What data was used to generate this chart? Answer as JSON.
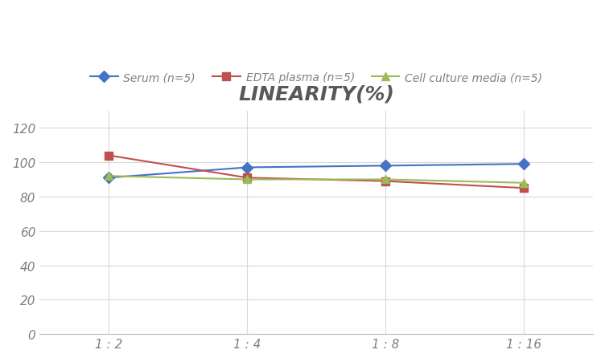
{
  "title": "LINEARITY(%)",
  "x_labels": [
    "1 : 2",
    "1 : 4",
    "1 : 8",
    "1 : 16"
  ],
  "x_positions": [
    0,
    1,
    2,
    3
  ],
  "series": [
    {
      "label": "Serum (n=5)",
      "values": [
        91,
        97,
        98,
        99
      ],
      "color": "#4472C4",
      "marker": "D",
      "markersize": 7,
      "linewidth": 1.5
    },
    {
      "label": "EDTA plasma (n=5)",
      "values": [
        104,
        91,
        89,
        85
      ],
      "color": "#C0504D",
      "marker": "s",
      "markersize": 7,
      "linewidth": 1.5
    },
    {
      "label": "Cell culture media (n=5)",
      "values": [
        92,
        90,
        90,
        88
      ],
      "color": "#9BBB59",
      "marker": "^",
      "markersize": 7,
      "linewidth": 1.5
    }
  ],
  "ylim": [
    0,
    130
  ],
  "yticks": [
    0,
    20,
    40,
    60,
    80,
    100,
    120
  ],
  "background_color": "#FFFFFF",
  "grid_color": "#D9D9D9",
  "title_fontsize": 18,
  "title_fontstyle": "italic",
  "title_fontweight": "bold",
  "title_color": "#595959",
  "legend_fontsize": 10,
  "tick_fontsize": 11,
  "tick_color": "#808080"
}
